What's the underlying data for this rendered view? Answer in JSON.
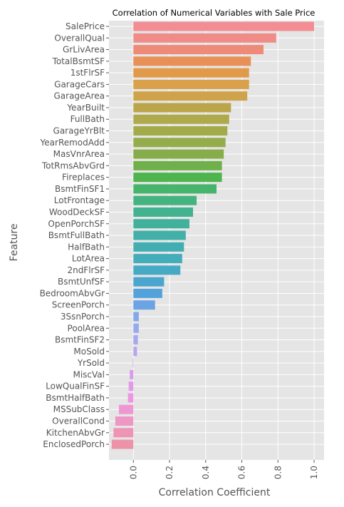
{
  "chart_data": {
    "type": "bar",
    "orientation": "horizontal",
    "title": "Correlation of Numerical Variables with Sale Price",
    "xlabel": "Correlation Coefficient",
    "ylabel": "Feature",
    "xlim": [
      -0.135,
      1.055
    ],
    "xticks": [
      0.0,
      0.2,
      0.4,
      0.6,
      0.8,
      1.0
    ],
    "xtick_labels": [
      "0.0",
      "0.2",
      "0.4",
      "0.6",
      "0.8",
      "1.0"
    ],
    "grid": true,
    "background": "#e5e5e5",
    "categories": [
      "SalePrice",
      "OverallQual",
      "GrLivArea",
      "TotalBsmtSF",
      "1stFlrSF",
      "GarageCars",
      "GarageArea",
      "YearBuilt",
      "FullBath",
      "GarageYrBlt",
      "YearRemodAdd",
      "MasVnrArea",
      "TotRmsAbvGrd",
      "Fireplaces",
      "BsmtFinSF1",
      "LotFrontage",
      "WoodDeckSF",
      "OpenPorchSF",
      "BsmtFullBath",
      "HalfBath",
      "LotArea",
      "2ndFlrSF",
      "BsmtUnfSF",
      "BedroomAbvGr",
      "ScreenPorch",
      "3SsnPorch",
      "PoolArea",
      "BsmtFinSF2",
      "MoSold",
      "YrSold",
      "MiscVal",
      "LowQualFinSF",
      "BsmtHalfBath",
      "MSSubClass",
      "OverallCond",
      "KitchenAbvGr",
      "EnclosedPorch"
    ],
    "values": [
      1.0,
      0.79,
      0.72,
      0.65,
      0.64,
      0.64,
      0.63,
      0.54,
      0.53,
      0.52,
      0.51,
      0.5,
      0.49,
      0.49,
      0.46,
      0.35,
      0.33,
      0.31,
      0.29,
      0.28,
      0.27,
      0.26,
      0.17,
      0.16,
      0.12,
      0.03,
      0.03,
      0.025,
      0.02,
      -0.003,
      -0.02,
      -0.026,
      -0.03,
      -0.08,
      -0.1,
      -0.11,
      -0.12
    ],
    "colors": [
      "#f28e93",
      "#ef8c88",
      "#ed8a78",
      "#e98f58",
      "#e09a4a",
      "#d9a14a",
      "#cfa34a",
      "#bba54a",
      "#aeaa4b",
      "#a2aa4a",
      "#94ac4a",
      "#86ad4a",
      "#6fb04a",
      "#4db44e",
      "#46b46b",
      "#45b37f",
      "#43b28e",
      "#42b19c",
      "#42b0a8",
      "#43aeb2",
      "#44adba",
      "#46aac4",
      "#4aa6cf",
      "#54a2db",
      "#6ba3e3",
      "#82a8ea",
      "#96aaee",
      "#a6a8f0",
      "#b8a4f0",
      "#c9a0ef",
      "#d79ded",
      "#e29ae8",
      "#eb98e0",
      "#ee97d2",
      "#ee97c4",
      "#ee95b6",
      "#ec93a8"
    ]
  }
}
